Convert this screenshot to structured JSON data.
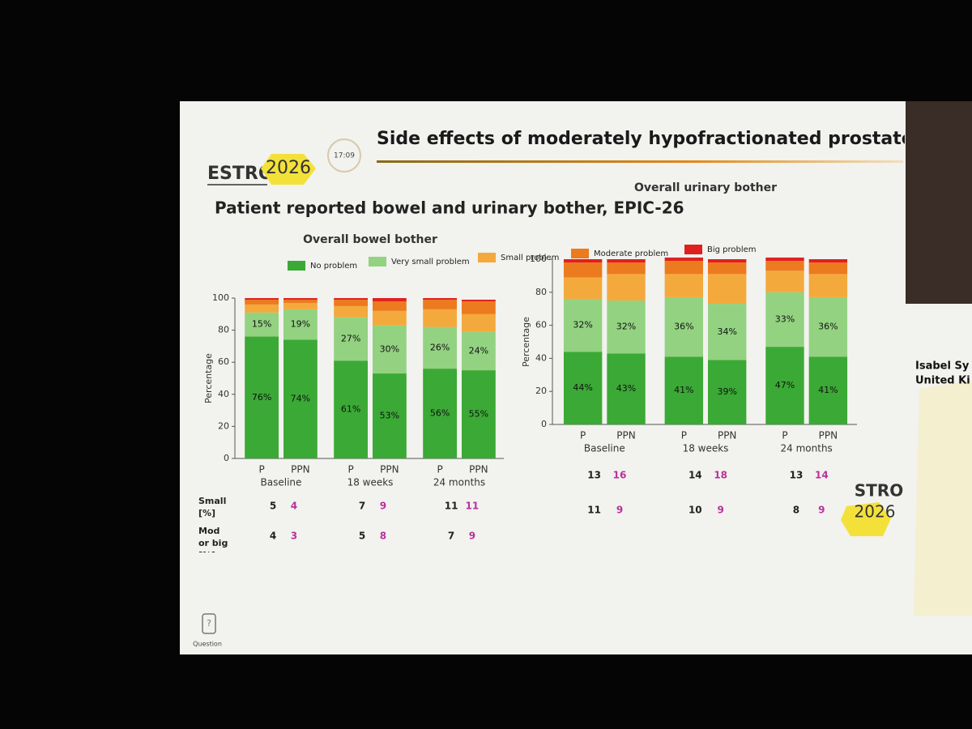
{
  "header": {
    "logo_text": "ESTRO",
    "logo_year": "2026",
    "clock": "17:09",
    "title": "Side effects of moderately hypofractionated prostate and pelvic ly"
  },
  "subtitle": "Patient reported bowel and urinary bother, EPIC-26",
  "chart_data": [
    {
      "type": "bar",
      "stacked": true,
      "title": "Overall bowel bother",
      "y_label": "Percentage",
      "categories": [
        "P",
        "PPN",
        "P",
        "PPN",
        "P",
        "PPN"
      ],
      "groups": [
        "Baseline",
        "18 weeks",
        "24 months"
      ],
      "ylim": [
        0,
        100
      ],
      "yticks": [
        0,
        20,
        40,
        60,
        80,
        100
      ],
      "series": [
        {
          "name": "No problem",
          "color": "#3ba935",
          "values": [
            76,
            74,
            61,
            53,
            56,
            55
          ],
          "value_labels": [
            "76%",
            "74%",
            "61%",
            "53%",
            "56%",
            "55%"
          ]
        },
        {
          "name": "Very small problem",
          "color": "#93d281",
          "values": [
            15,
            19,
            27,
            30,
            26,
            24
          ],
          "value_labels": [
            "15%",
            "19%",
            "27%",
            "30%",
            "26%",
            "24%"
          ]
        },
        {
          "name": "Small problem",
          "color": "#f4a93c",
          "values": [
            5,
            4,
            7,
            9,
            11,
            11
          ]
        },
        {
          "name": "Moderate problem",
          "color": "#ec7a1f",
          "values": [
            3,
            2,
            4,
            6,
            6,
            8
          ]
        },
        {
          "name": "Big problem",
          "color": "#e0201f",
          "values": [
            1,
            1,
            1,
            2,
            1,
            1
          ]
        }
      ]
    },
    {
      "type": "bar",
      "stacked": true,
      "title": "Overall urinary bother",
      "y_label": "Percentage",
      "categories": [
        "P",
        "PPN",
        "P",
        "PPN",
        "P",
        "PPN"
      ],
      "groups": [
        "Baseline",
        "18 weeks",
        "24 months"
      ],
      "ylim": [
        0,
        100
      ],
      "yticks": [
        0,
        20,
        40,
        60,
        80,
        100
      ],
      "series": [
        {
          "color": "#3ba935",
          "values": [
            44,
            43,
            41,
            39,
            47,
            41
          ],
          "value_labels": [
            "44%",
            "43%",
            "41%",
            "39%",
            "47%",
            "41%"
          ]
        },
        {
          "color": "#93d281",
          "values": [
            32,
            32,
            36,
            34,
            33,
            36
          ],
          "value_labels": [
            "32%",
            "32%",
            "36%",
            "34%",
            "33%",
            "36%"
          ]
        },
        {
          "color": "#f4a93c",
          "values": [
            13,
            16,
            14,
            18,
            13,
            14
          ]
        },
        {
          "color": "#ec7a1f",
          "values": [
            9,
            7,
            8,
            7,
            6,
            7
          ]
        },
        {
          "color": "#e0201f",
          "values": [
            2,
            2,
            2,
            2,
            2,
            2
          ]
        }
      ]
    }
  ],
  "tables": [
    {
      "rows": [
        {
          "label": "Small [%]",
          "values": [
            5,
            4,
            7,
            9,
            11,
            11
          ]
        },
        {
          "label": "Mod or big [%]",
          "values": [
            4,
            3,
            5,
            8,
            7,
            9
          ]
        }
      ]
    },
    {
      "rows": [
        {
          "values": [
            13,
            16,
            14,
            18,
            13,
            14
          ]
        },
        {
          "values": [
            11,
            9,
            10,
            9,
            8,
            9
          ]
        }
      ]
    }
  ],
  "speaker": {
    "name": "Isabel Sy",
    "affiliation": "United Ki"
  },
  "footer": {
    "logo_text": "STRO",
    "logo_year": "2026",
    "question": "Question"
  }
}
